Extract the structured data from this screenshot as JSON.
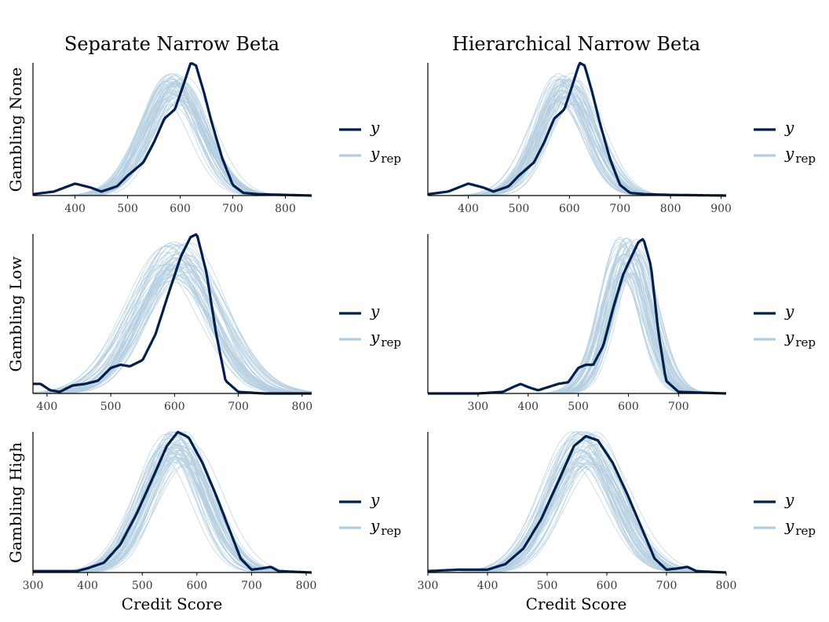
{
  "column_titles": [
    "Separate Narrow Beta",
    "Hierarchical Narrow Beta"
  ],
  "row_labels": [
    "Gambling None",
    "Gambling Low",
    "Gambling High"
  ],
  "x_axis_title": "Credit Score",
  "legend": {
    "y_label": "y",
    "yrep_base": "y",
    "yrep_sub": "rep"
  },
  "colors": {
    "y": "#011f4b",
    "yrep": "#b3cde0",
    "axis": "#000000",
    "tick_text": "#3a3a3a"
  },
  "chart_data": [
    {
      "type": "line",
      "row": "Gambling None",
      "column": "Separate Narrow Beta",
      "xlim": [
        320,
        850
      ],
      "ticks": [
        400,
        500,
        600,
        700,
        800
      ],
      "y": [
        [
          320,
          0.01
        ],
        [
          360,
          0.03
        ],
        [
          400,
          0.09
        ],
        [
          430,
          0.06
        ],
        [
          450,
          0.03
        ],
        [
          480,
          0.07
        ],
        [
          500,
          0.15
        ],
        [
          530,
          0.25
        ],
        [
          550,
          0.4
        ],
        [
          570,
          0.58
        ],
        [
          590,
          0.65
        ],
        [
          605,
          0.82
        ],
        [
          620,
          1.0
        ],
        [
          630,
          0.98
        ],
        [
          645,
          0.78
        ],
        [
          660,
          0.55
        ],
        [
          680,
          0.28
        ],
        [
          700,
          0.08
        ],
        [
          720,
          0.02
        ],
        [
          750,
          0.01
        ],
        [
          800,
          0.005
        ],
        [
          850,
          0.0
        ]
      ],
      "yrep_center": 590,
      "yrep_sd": 54,
      "yrep_peak": 0.8,
      "yrep_count": 50
    },
    {
      "type": "line",
      "row": "Gambling None",
      "column": "Hierarchical Narrow Beta",
      "xlim": [
        320,
        910
      ],
      "ticks": [
        400,
        500,
        600,
        700,
        800,
        900
      ],
      "y": [
        [
          320,
          0.01
        ],
        [
          360,
          0.03
        ],
        [
          400,
          0.09
        ],
        [
          430,
          0.06
        ],
        [
          450,
          0.03
        ],
        [
          480,
          0.07
        ],
        [
          500,
          0.15
        ],
        [
          530,
          0.25
        ],
        [
          550,
          0.4
        ],
        [
          570,
          0.58
        ],
        [
          590,
          0.65
        ],
        [
          605,
          0.82
        ],
        [
          620,
          1.0
        ],
        [
          630,
          0.98
        ],
        [
          645,
          0.78
        ],
        [
          660,
          0.55
        ],
        [
          680,
          0.28
        ],
        [
          700,
          0.08
        ],
        [
          720,
          0.02
        ],
        [
          750,
          0.01
        ],
        [
          800,
          0.005
        ],
        [
          910,
          0.0
        ]
      ],
      "yrep_center": 592,
      "yrep_sd": 52,
      "yrep_peak": 0.8,
      "yrep_count": 50
    },
    {
      "type": "line",
      "row": "Gambling Low",
      "column": "Separate Narrow Beta",
      "xlim": [
        378,
        815
      ],
      "ticks": [
        400,
        500,
        600,
        700,
        800
      ],
      "y": [
        [
          378,
          0.06
        ],
        [
          390,
          0.06
        ],
        [
          405,
          0.02
        ],
        [
          420,
          0.01
        ],
        [
          440,
          0.05
        ],
        [
          460,
          0.06
        ],
        [
          480,
          0.08
        ],
        [
          500,
          0.16
        ],
        [
          515,
          0.18
        ],
        [
          530,
          0.17
        ],
        [
          550,
          0.21
        ],
        [
          570,
          0.37
        ],
        [
          590,
          0.62
        ],
        [
          610,
          0.86
        ],
        [
          625,
          0.98
        ],
        [
          635,
          1.0
        ],
        [
          650,
          0.76
        ],
        [
          665,
          0.38
        ],
        [
          680,
          0.08
        ],
        [
          700,
          0.01
        ],
        [
          740,
          0.0
        ],
        [
          815,
          0.0
        ]
      ],
      "yrep_center": 600,
      "yrep_sd": 62,
      "yrep_peak": 0.82,
      "yrep_count": 50
    },
    {
      "type": "line",
      "row": "Gambling Low",
      "column": "Hierarchical Narrow Beta",
      "xlim": [
        200,
        795
      ],
      "ticks": [
        300,
        400,
        500,
        600,
        700
      ],
      "y": [
        [
          200,
          0.0
        ],
        [
          300,
          0.0
        ],
        [
          350,
          0.01
        ],
        [
          370,
          0.04
        ],
        [
          385,
          0.06
        ],
        [
          400,
          0.04
        ],
        [
          420,
          0.02
        ],
        [
          440,
          0.04
        ],
        [
          460,
          0.06
        ],
        [
          480,
          0.07
        ],
        [
          500,
          0.16
        ],
        [
          515,
          0.18
        ],
        [
          530,
          0.18
        ],
        [
          550,
          0.3
        ],
        [
          570,
          0.54
        ],
        [
          590,
          0.75
        ],
        [
          605,
          0.85
        ],
        [
          620,
          0.95
        ],
        [
          630,
          0.97
        ],
        [
          645,
          0.8
        ],
        [
          660,
          0.38
        ],
        [
          675,
          0.08
        ],
        [
          700,
          0.01
        ],
        [
          795,
          0.0
        ]
      ],
      "yrep_center": 600,
      "yrep_sd": 42,
      "yrep_peak": 0.85,
      "yrep_count": 50
    },
    {
      "type": "line",
      "row": "Gambling High",
      "column": "Separate Narrow Beta",
      "xlim": [
        300,
        810
      ],
      "ticks": [
        300,
        400,
        500,
        600,
        700,
        800
      ],
      "y": [
        [
          300,
          0.01
        ],
        [
          350,
          0.01
        ],
        [
          380,
          0.01
        ],
        [
          400,
          0.03
        ],
        [
          430,
          0.07
        ],
        [
          460,
          0.2
        ],
        [
          490,
          0.42
        ],
        [
          520,
          0.68
        ],
        [
          545,
          0.9
        ],
        [
          565,
          1.0
        ],
        [
          585,
          0.96
        ],
        [
          610,
          0.78
        ],
        [
          635,
          0.55
        ],
        [
          660,
          0.3
        ],
        [
          680,
          0.1
        ],
        [
          700,
          0.02
        ],
        [
          720,
          0.03
        ],
        [
          735,
          0.04
        ],
        [
          750,
          0.01
        ],
        [
          810,
          0.0
        ]
      ],
      "yrep_center": 562,
      "yrep_sd": 56,
      "yrep_peak": 0.88,
      "yrep_count": 50
    },
    {
      "type": "line",
      "row": "Gambling High",
      "column": "Hierarchical Narrow Beta",
      "xlim": [
        300,
        800
      ],
      "ticks": [
        300,
        400,
        500,
        600,
        700,
        800
      ],
      "y": [
        [
          300,
          0.01
        ],
        [
          350,
          0.02
        ],
        [
          400,
          0.02
        ],
        [
          430,
          0.06
        ],
        [
          460,
          0.17
        ],
        [
          490,
          0.38
        ],
        [
          520,
          0.66
        ],
        [
          545,
          0.9
        ],
        [
          565,
          0.97
        ],
        [
          585,
          0.94
        ],
        [
          610,
          0.78
        ],
        [
          635,
          0.55
        ],
        [
          660,
          0.3
        ],
        [
          680,
          0.1
        ],
        [
          700,
          0.02
        ],
        [
          720,
          0.03
        ],
        [
          735,
          0.04
        ],
        [
          750,
          0.01
        ],
        [
          800,
          0.0
        ]
      ],
      "yrep_center": 562,
      "yrep_sd": 56,
      "yrep_peak": 0.88,
      "yrep_count": 50
    }
  ]
}
